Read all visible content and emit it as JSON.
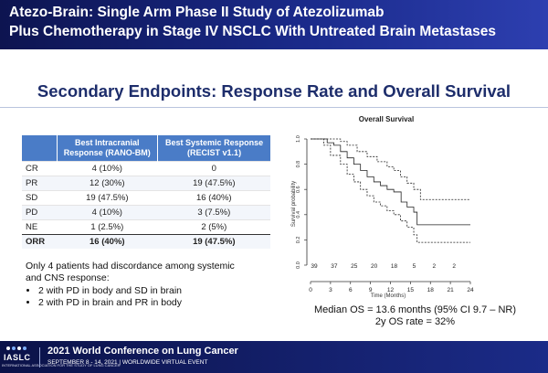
{
  "header": {
    "title_line1": "Atezo-Brain: Single Arm Phase II Study of Atezolizumab",
    "title_line2": "Plus Chemotherapy in Stage IV NSCLC With Untreated Brain Metastases"
  },
  "slide": {
    "subtitle": "Secondary Endpoints: Response Rate and Overall Survival"
  },
  "table": {
    "header_col2_line1": "Best Intracranial",
    "header_col2_line2": "Response (RANO-BM)",
    "header_col3_line1": "Best Systemic Response",
    "header_col3_line2": "(RECIST v1.1)",
    "rows": [
      {
        "label": "CR",
        "intracranial": "4 (10%)",
        "systemic": "0"
      },
      {
        "label": "PR",
        "intracranial": "12 (30%)",
        "systemic": "19 (47.5%)"
      },
      {
        "label": "SD",
        "intracranial": "19 (47.5%)",
        "systemic": "16 (40%)"
      },
      {
        "label": "PD",
        "intracranial": "4 (10%)",
        "systemic": "3 (7.5%)"
      },
      {
        "label": "NE",
        "intracranial": "1 (2.5%)",
        "systemic": "2 (5%)"
      },
      {
        "label": "ORR",
        "intracranial": "16 (40%)",
        "systemic": "19 (47.5%)"
      }
    ]
  },
  "discordance": {
    "line1": "Only 4 patients had discordance among systemic",
    "line2": "and CNS response:",
    "bullets": [
      "2 with PD in body and SD in brain",
      "2 with PD in brain and PR in body"
    ]
  },
  "chart_data": {
    "type": "line",
    "title": "Overall Survival",
    "xlabel": "Time (Months)",
    "ylabel": "Survival probability",
    "xlim": [
      0,
      24
    ],
    "ylim": [
      0,
      1
    ],
    "x_ticks": [
      "0",
      "3",
      "6",
      "9",
      "12",
      "15",
      "18",
      "21",
      "24"
    ],
    "y_ticks": [
      "0.0",
      "0.2",
      "0.4",
      "0.6",
      "0.8",
      "1.0"
    ],
    "at_risk": [
      "39",
      "37",
      "25",
      "20",
      "18",
      "5",
      "2",
      "2"
    ],
    "at_risk_times": [
      0,
      3,
      6,
      9,
      12,
      15,
      18,
      21
    ],
    "series": [
      {
        "style": "solid",
        "points": [
          [
            0,
            1.0
          ],
          [
            2,
            1.0
          ],
          [
            2.5,
            0.97
          ],
          [
            3.5,
            0.95
          ],
          [
            4.5,
            0.9
          ],
          [
            5.5,
            0.85
          ],
          [
            6.5,
            0.8
          ],
          [
            7.5,
            0.75
          ],
          [
            8.5,
            0.7
          ],
          [
            9.5,
            0.66
          ],
          [
            10.5,
            0.63
          ],
          [
            11.5,
            0.6
          ],
          [
            12.5,
            0.58
          ],
          [
            13.6,
            0.5
          ],
          [
            14.5,
            0.46
          ],
          [
            15.5,
            0.42
          ],
          [
            16,
            0.32
          ],
          [
            24,
            0.32
          ]
        ]
      },
      {
        "style": "dashed",
        "points": [
          [
            0,
            1.0
          ],
          [
            3,
            1.0
          ],
          [
            4.5,
            0.98
          ],
          [
            5.5,
            0.95
          ],
          [
            7,
            0.9
          ],
          [
            8.5,
            0.86
          ],
          [
            10,
            0.82
          ],
          [
            11.5,
            0.78
          ],
          [
            12.5,
            0.75
          ],
          [
            13.5,
            0.7
          ],
          [
            14.5,
            0.65
          ],
          [
            15.5,
            0.6
          ],
          [
            16.5,
            0.52
          ],
          [
            24,
            0.52
          ]
        ]
      },
      {
        "style": "dashed",
        "points": [
          [
            0,
            1.0
          ],
          [
            2,
            0.95
          ],
          [
            3,
            0.87
          ],
          [
            4.5,
            0.8
          ],
          [
            5.5,
            0.72
          ],
          [
            6.5,
            0.66
          ],
          [
            7.5,
            0.6
          ],
          [
            8.5,
            0.55
          ],
          [
            9.5,
            0.5
          ],
          [
            10.5,
            0.47
          ],
          [
            11.5,
            0.43
          ],
          [
            12.5,
            0.4
          ],
          [
            13.5,
            0.35
          ],
          [
            14.5,
            0.3
          ],
          [
            15.5,
            0.24
          ],
          [
            16,
            0.18
          ],
          [
            24,
            0.18
          ]
        ]
      }
    ]
  },
  "os_summary": {
    "line1": "Median OS = 13.6 months (95% CI 9.7 – NR)",
    "line2": "2y OS rate = 32%"
  },
  "footer": {
    "logo": "IASLC",
    "logo_tagline": "INTERNATIONAL ASSOCIATION FOR THE STUDY OF LUNG CANCER",
    "conference": "2021 World Conference on Lung Cancer",
    "dates": "SEPTEMBER 8 - 14, 2021 | WORLDWIDE VIRTUAL EVENT"
  }
}
